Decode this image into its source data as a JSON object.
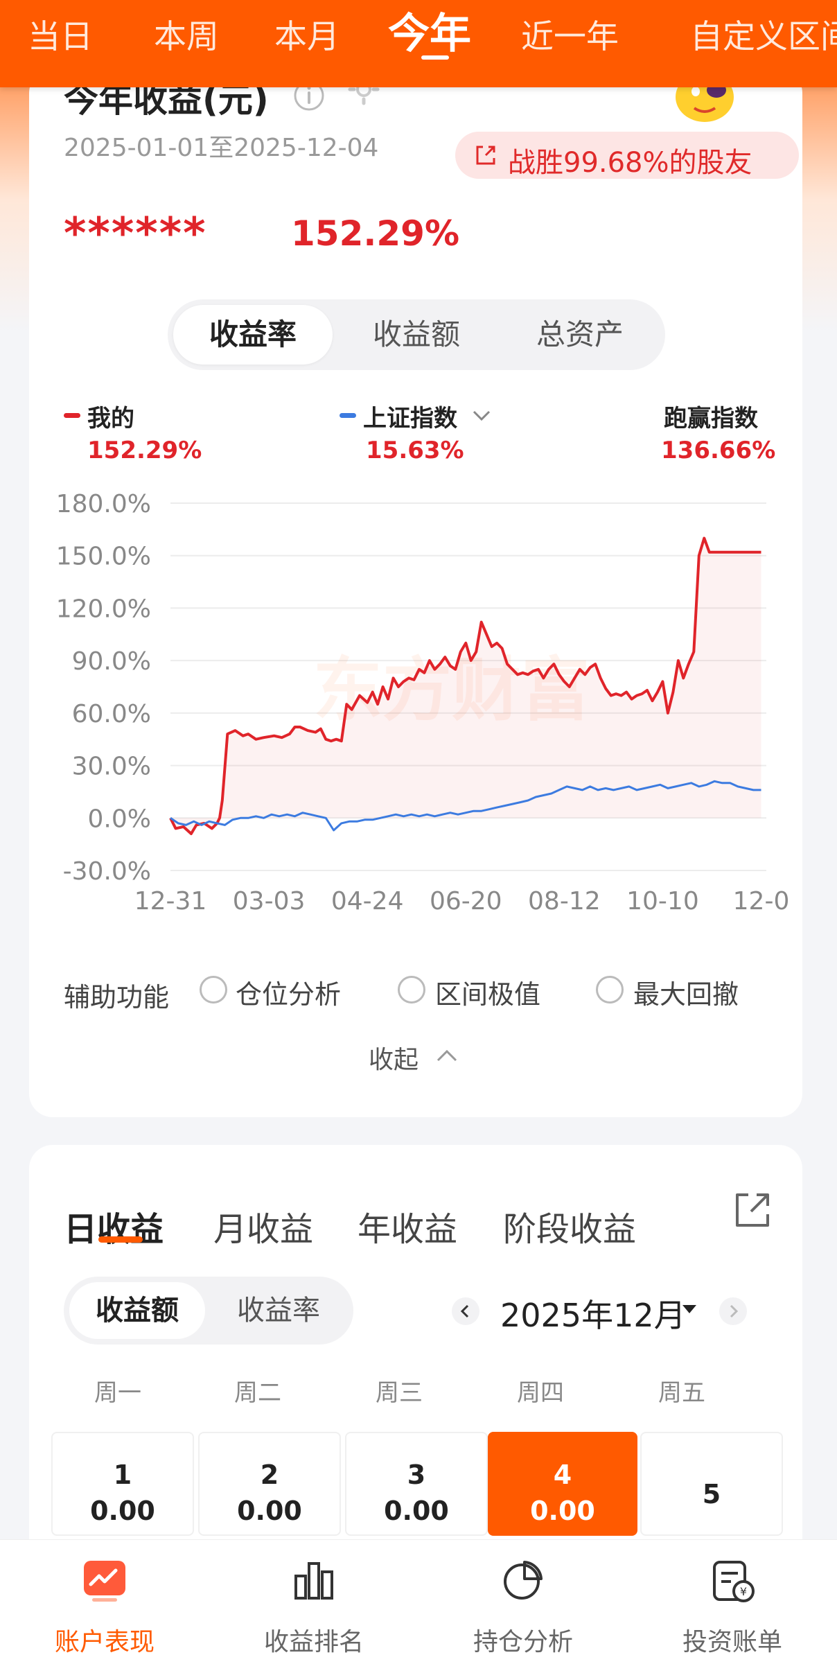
{
  "period_tabs": [
    "当日",
    "本周",
    "本月",
    "今年",
    "近一年",
    "自定义区间"
  ],
  "active_period": "今年",
  "card": {
    "title": "今年收益(元)",
    "date_range": "2025-01-01至2025-12-04",
    "beat_text": "战胜99.68%的股友",
    "masked_amount": "******",
    "return_rate": "152.29%"
  },
  "metric_tabs": [
    "收益率",
    "收益额",
    "总资产"
  ],
  "legend": {
    "mine_label": "我的",
    "mine_value": "152.29%",
    "index_label": "上证指数",
    "index_value": "15.63%",
    "beat_label": "跑赢指数",
    "beat_value": "136.66%"
  },
  "chart_data": {
    "type": "line",
    "watermark": "东方财富",
    "x_tick_labels": [
      "12-31",
      "03-03",
      "04-24",
      "06-20",
      "08-12",
      "10-10",
      "12-0"
    ],
    "y_tick_labels": [
      "180.0%",
      "150.0%",
      "120.0%",
      "90.0%",
      "60.0%",
      "30.0%",
      "0.0%",
      "-30.0%"
    ],
    "ylim": [
      -30,
      180
    ],
    "y_ticks": [
      180,
      150,
      120,
      90,
      60,
      30,
      0,
      -30
    ],
    "x_range": [
      0,
      230
    ],
    "x_tick_positions": [
      0,
      38,
      76,
      114,
      152,
      190,
      228
    ],
    "series": [
      {
        "name": "我的",
        "color": "#e0242a",
        "x": [
          0,
          2,
          5,
          8,
          10,
          13,
          16,
          18,
          19,
          20,
          22,
          25,
          28,
          30,
          33,
          36,
          40,
          43,
          46,
          48,
          50,
          53,
          56,
          58,
          60,
          62,
          64,
          66,
          68,
          70,
          73,
          76,
          78,
          80,
          82,
          84,
          86,
          88,
          90,
          92,
          94,
          96,
          98,
          100,
          102,
          104,
          106,
          108,
          110,
          112,
          114,
          116,
          118,
          120,
          122,
          124,
          126,
          128,
          130,
          132,
          134,
          136,
          138,
          140,
          142,
          144,
          146,
          148,
          150,
          152,
          154,
          156,
          158,
          160,
          162,
          164,
          166,
          168,
          170,
          172,
          174,
          176,
          178,
          180,
          182,
          184,
          186,
          188,
          190,
          192,
          194,
          196,
          198,
          200,
          202,
          204,
          206,
          208,
          210,
          212,
          214,
          216,
          218,
          220,
          222,
          224,
          226,
          228
        ],
        "values": [
          0,
          -6,
          -5,
          -9,
          -4,
          -3,
          -6,
          -3,
          0,
          10,
          48,
          50,
          47,
          48,
          45,
          46,
          47,
          46,
          48,
          52,
          52,
          50,
          49,
          51,
          45,
          44,
          45,
          44,
          65,
          62,
          70,
          66,
          72,
          65,
          75,
          68,
          80,
          75,
          78,
          80,
          79,
          85,
          83,
          90,
          85,
          88,
          92,
          87,
          85,
          95,
          100,
          90,
          95,
          112,
          105,
          98,
          100,
          97,
          88,
          85,
          82,
          83,
          82,
          84,
          85,
          80,
          85,
          88,
          82,
          78,
          75,
          80,
          85,
          82,
          86,
          88,
          80,
          74,
          70,
          71,
          70,
          72,
          68,
          70,
          71,
          73,
          67,
          72,
          78,
          60,
          72,
          90,
          80,
          88,
          95,
          150,
          160,
          152,
          152,
          152,
          152,
          152,
          152,
          152,
          152,
          152,
          152,
          152
        ],
        "fill": true
      },
      {
        "name": "上证指数",
        "color": "#3c7be0",
        "x": [
          0,
          3,
          6,
          9,
          12,
          15,
          18,
          21,
          24,
          27,
          30,
          33,
          36,
          39,
          42,
          45,
          48,
          51,
          54,
          57,
          60,
          63,
          66,
          69,
          72,
          75,
          78,
          81,
          84,
          87,
          90,
          93,
          96,
          99,
          102,
          105,
          108,
          111,
          114,
          117,
          120,
          123,
          126,
          129,
          132,
          135,
          138,
          141,
          144,
          147,
          150,
          153,
          156,
          159,
          162,
          165,
          168,
          171,
          174,
          177,
          180,
          183,
          186,
          189,
          192,
          195,
          198,
          201,
          204,
          207,
          210,
          213,
          216,
          219,
          222,
          225,
          228
        ],
        "values": [
          0,
          -3,
          -4,
          -2,
          -4,
          -2,
          -3,
          -4,
          -1,
          0,
          0,
          1,
          0,
          2,
          1,
          2,
          1,
          3,
          2,
          1,
          0,
          -7,
          -3,
          -2,
          -2,
          -1,
          -1,
          0,
          1,
          2,
          1,
          2,
          1,
          2,
          1,
          2,
          3,
          2,
          3,
          4,
          4,
          5,
          6,
          7,
          8,
          9,
          10,
          12,
          13,
          14,
          16,
          18,
          17,
          16,
          18,
          16,
          17,
          16,
          17,
          18,
          16,
          17,
          18,
          19,
          17,
          18,
          19,
          20,
          18,
          19,
          21,
          20,
          20,
          18,
          17,
          16,
          16
        ]
      }
    ]
  },
  "aux": {
    "label": "辅助功能",
    "options": [
      "仓位分析",
      "区间极值",
      "最大回撤"
    ],
    "collapse": "收起"
  },
  "returns_tabs": [
    "日收益",
    "月收益",
    "年收益",
    "阶段收益"
  ],
  "returns_metric_tabs": [
    "收益额",
    "收益率"
  ],
  "month": "2025年12月",
  "weekdays": [
    "周一",
    "周二",
    "周三",
    "周四",
    "周五"
  ],
  "days": [
    {
      "day": "1",
      "value": "0.00"
    },
    {
      "day": "2",
      "value": "0.00"
    },
    {
      "day": "3",
      "value": "0.00"
    },
    {
      "day": "4",
      "value": "0.00"
    },
    {
      "day": "5",
      "value": ""
    }
  ],
  "bottom_nav": [
    "账户表现",
    "收益排名",
    "持仓分析",
    "投资账单"
  ],
  "colors": {
    "accent": "#ff5a00",
    "gain": "#e0242a",
    "index": "#3c7be0"
  }
}
